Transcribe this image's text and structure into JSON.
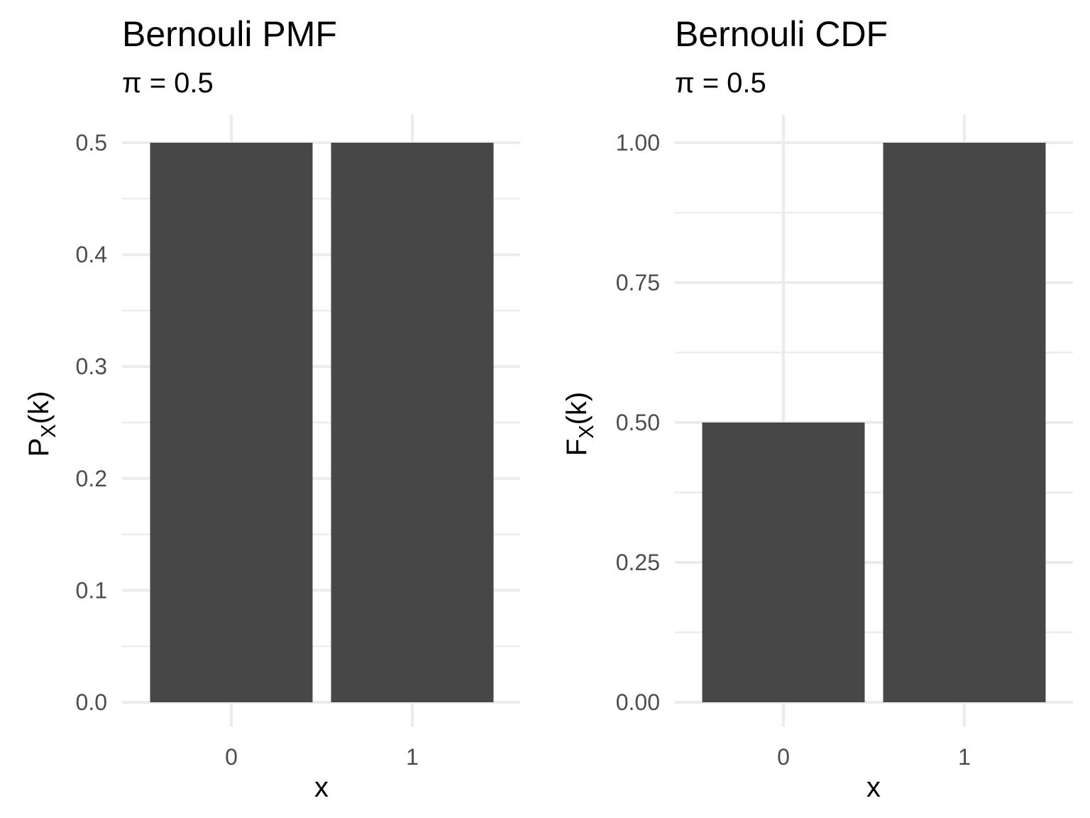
{
  "chart_data": [
    {
      "type": "bar",
      "title": "Bernouli PMF",
      "subtitle": "π = 0.5",
      "categories": [
        "0",
        "1"
      ],
      "values": [
        0.5,
        0.5
      ],
      "xlabel": "x",
      "ylabel_main": "P",
      "ylabel_sub": "X",
      "ylabel_tail": "(k)",
      "ylim": [
        0,
        0.5
      ],
      "yticks": [
        0.0,
        0.1,
        0.2,
        0.3,
        0.4,
        0.5
      ],
      "ytick_labels": [
        "0.0",
        "0.1",
        "0.2",
        "0.3",
        "0.4",
        "0.5"
      ],
      "minor_yticks": [
        0.05,
        0.15,
        0.25,
        0.35,
        0.45
      ],
      "bar_color": "#474747",
      "grid": true
    },
    {
      "type": "bar",
      "title": "Bernouli CDF",
      "subtitle": "π = 0.5",
      "categories": [
        "0",
        "1"
      ],
      "values": [
        0.5,
        1.0
      ],
      "xlabel": "x",
      "ylabel_main": "F",
      "ylabel_sub": "X",
      "ylabel_tail": "(k)",
      "ylim": [
        0,
        1.0
      ],
      "yticks": [
        0.0,
        0.25,
        0.5,
        0.75,
        1.0
      ],
      "ytick_labels": [
        "0.00",
        "0.25",
        "0.50",
        "0.75",
        "1.00"
      ],
      "minor_yticks": [
        0.125,
        0.375,
        0.625,
        0.875
      ],
      "bar_color": "#474747",
      "grid": true
    }
  ]
}
